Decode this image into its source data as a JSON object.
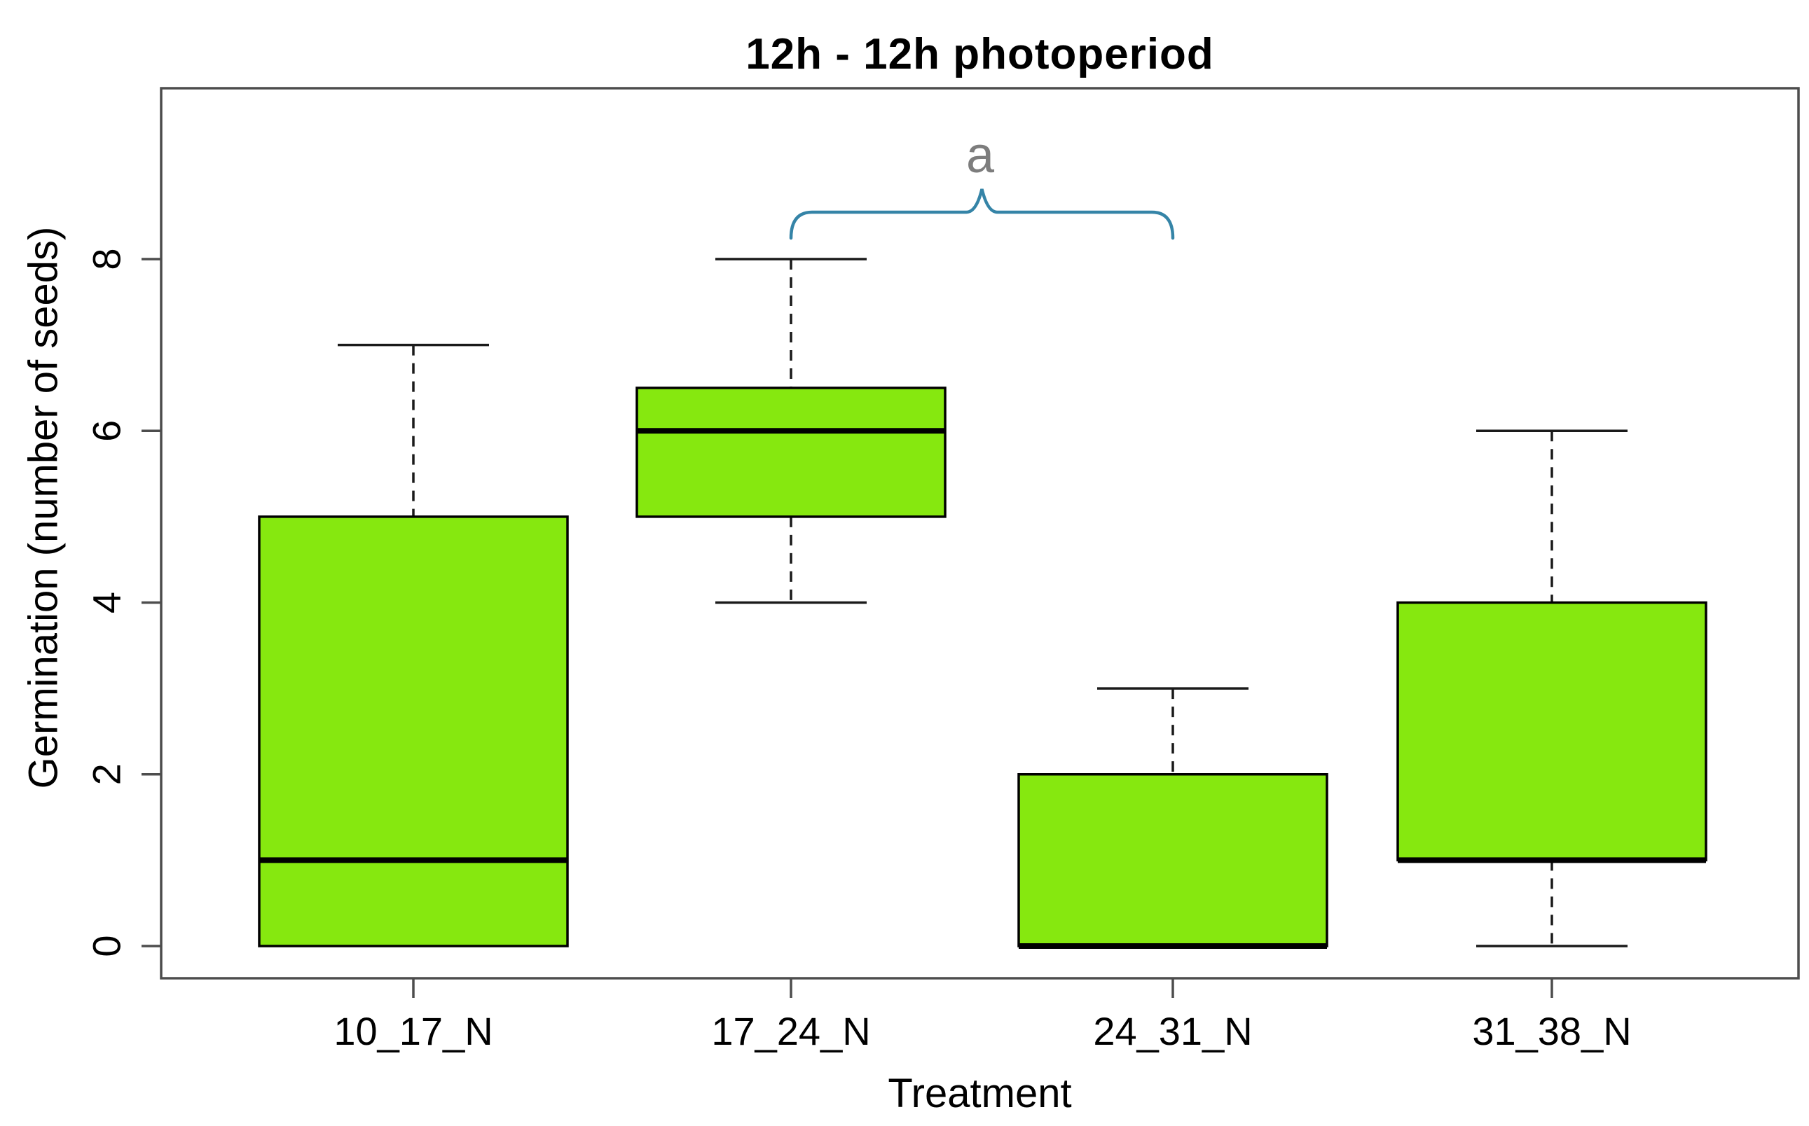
{
  "chart_data": {
    "type": "boxplot",
    "title": "12h - 12h photoperiod",
    "xlabel": "Treatment",
    "ylabel": "Germination (number of seeds)",
    "categories": [
      "10_17_N",
      "17_24_N",
      "24_31_N",
      "31_38_N"
    ],
    "yticks": [
      0,
      2,
      4,
      6,
      8
    ],
    "ylim": [
      -0.4,
      10.0
    ],
    "grid": false,
    "series": [
      {
        "category": "10_17_N",
        "min": 0,
        "q1": 0,
        "median": 1,
        "q3": 5,
        "max": 7
      },
      {
        "category": "17_24_N",
        "min": 4,
        "q1": 5,
        "median": 6,
        "q3": 6.5,
        "max": 8
      },
      {
        "category": "24_31_N",
        "min": 0,
        "q1": 0,
        "median": 0,
        "q3": 2,
        "max": 3
      },
      {
        "category": "31_38_N",
        "min": 0,
        "q1": 1,
        "median": 1,
        "q3": 4,
        "max": 6
      }
    ],
    "colors": {
      "box_fill": "#86E80F",
      "box_stroke": "#000000",
      "axis": "#4d4d4d",
      "whisker": "#1a1a1a",
      "brace": "#3584A7",
      "annotation_text": "#7d7d7d",
      "text": "#000000"
    },
    "annotation": {
      "label": "a",
      "span": [
        "17_24_N",
        "24_31_N"
      ]
    }
  }
}
